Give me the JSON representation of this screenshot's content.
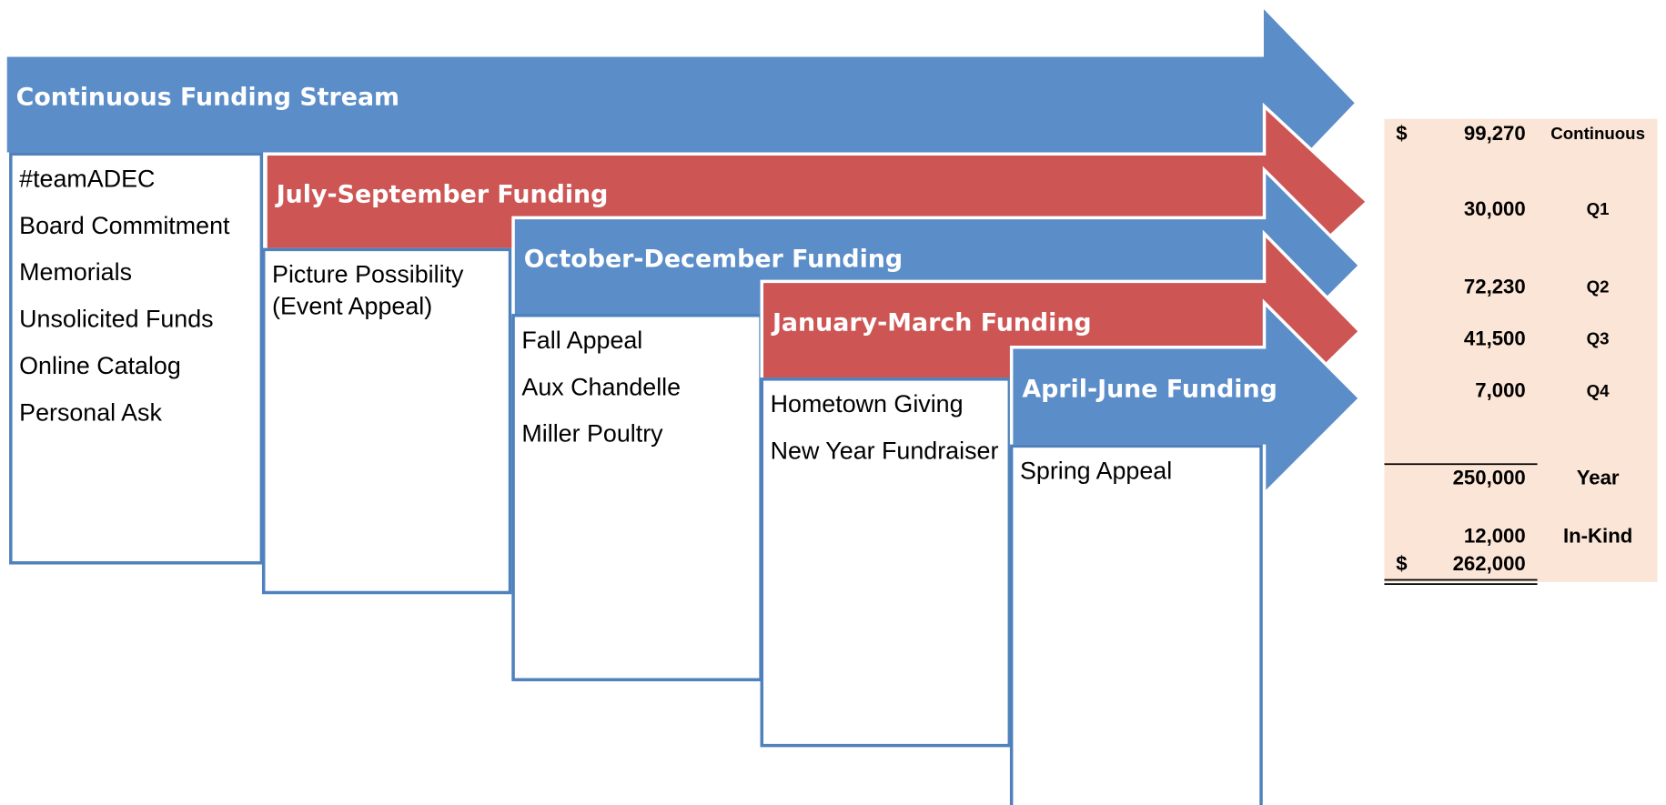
{
  "streams": [
    {
      "title": "Continuous Funding Stream",
      "color": "#5b8dc9",
      "items": [
        "#teamADEC",
        "Board Commitment",
        "Memorials",
        "Unsolicited Funds",
        "Online Catalog",
        "Personal Ask"
      ]
    },
    {
      "title": "July-September Funding",
      "color": "#cd5654",
      "items": [
        "Picture Possibility (Event Appeal)"
      ]
    },
    {
      "title": "October-December Funding",
      "color": "#5b8dc9",
      "items": [
        "Fall Appeal",
        "Aux Chandelle",
        "Miller Poultry"
      ]
    },
    {
      "title": "January-March Funding",
      "color": "#cd5654",
      "items": [
        "Hometown Giving",
        "New Year Fundraiser"
      ]
    },
    {
      "title": "April-June Funding",
      "color": "#5b8dc9",
      "items": [
        "Spring Appeal"
      ]
    }
  ],
  "table": {
    "rows": [
      {
        "currency": "$",
        "amount": "99,270",
        "label": "Continuous"
      },
      {
        "amount": "30,000",
        "label": "Q1"
      },
      {
        "amount": "72,230",
        "label": "Q2"
      },
      {
        "amount": "41,500",
        "label": "Q3"
      },
      {
        "amount": "7,000",
        "label": "Q4"
      },
      {
        "amount": "250,000",
        "label": "Year"
      },
      {
        "amount": "12,000",
        "label": "In-Kind"
      },
      {
        "currency": "$",
        "amount": "262,000"
      }
    ]
  }
}
